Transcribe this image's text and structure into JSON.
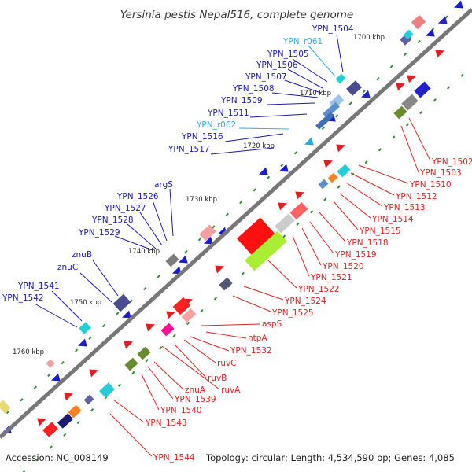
{
  "title": "Yersinia pestis Nepal516, complete genome",
  "footer": {
    "accession": "Accession: NC_008149",
    "topology": "Topology: circular; Length: 4,534,590 bp; Genes: 4,085"
  },
  "colors": {
    "axis": "#777777",
    "tick_dot": "#2f8f2f",
    "plus_label": "#1a1ab0",
    "rna_label": "#33aadd",
    "minus_label": "#dd2222"
  },
  "kbp_ticks": [
    "1700 kbp",
    "1710 kbp",
    "1720 kbp",
    "1730 kbp",
    "1740 kbp",
    "1750 kbp",
    "1760 kbp"
  ],
  "left_labels": [
    {
      "text": "YPN_1504",
      "kind": "gene"
    },
    {
      "text": "YPN_r061",
      "kind": "rna"
    },
    {
      "text": "YPN_1505",
      "kind": "gene"
    },
    {
      "text": "YPN_1506",
      "kind": "gene"
    },
    {
      "text": "YPN_1507",
      "kind": "gene"
    },
    {
      "text": "YPN_1508",
      "kind": "gene"
    },
    {
      "text": "YPN_1509",
      "kind": "gene"
    },
    {
      "text": "YPN_1511",
      "kind": "gene"
    },
    {
      "text": "YPN_r062",
      "kind": "rna"
    },
    {
      "text": "YPN_1516",
      "kind": "gene"
    },
    {
      "text": "YPN_1517",
      "kind": "gene"
    },
    {
      "text": "argS",
      "kind": "gene"
    },
    {
      "text": "YPN_1526",
      "kind": "gene"
    },
    {
      "text": "YPN_1527",
      "kind": "gene"
    },
    {
      "text": "YPN_1528",
      "kind": "gene"
    },
    {
      "text": "YPN_1529",
      "kind": "gene"
    },
    {
      "text": "znuB",
      "kind": "gene"
    },
    {
      "text": "znuC",
      "kind": "gene"
    },
    {
      "text": "YPN_1541",
      "kind": "gene"
    },
    {
      "text": "YPN_1542",
      "kind": "gene"
    }
  ],
  "right_labels": [
    "YPN_1502",
    "YPN_1503",
    "YPN_1510",
    "YPN_1512",
    "YPN_1513",
    "YPN_1514",
    "YPN_1515",
    "YPN_1518",
    "YPN_1519",
    "YPN_1520",
    "YPN_1521",
    "YPN_1522",
    "YPN_1524",
    "YPN_1525",
    "aspS",
    "ntpA",
    "YPN_1532",
    "ruvC",
    "ruvB",
    "ruvA",
    "znuA",
    "YPN_1539",
    "YPN_1540",
    "YPN_1543",
    "YPN_1544"
  ]
}
